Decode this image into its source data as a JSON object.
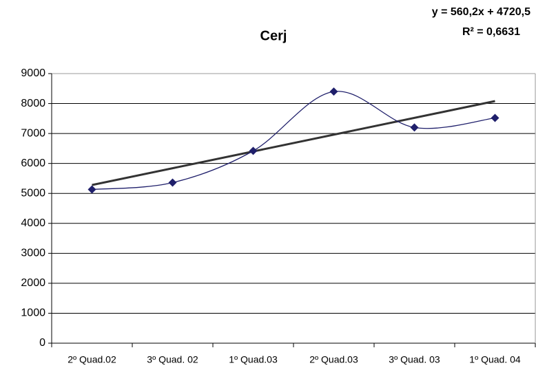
{
  "chart_data": {
    "type": "line",
    "title": "Cerj",
    "categories": [
      "2º Quad.02",
      "3º Quad. 02",
      "1º Quad.03",
      "2º Quad.03",
      "3º Quad. 03",
      "1º Quad. 04"
    ],
    "series": [
      {
        "name": "Cerj",
        "color": "#1f1f6b",
        "values": [
          5130,
          5360,
          6420,
          8400,
          7200,
          7520
        ]
      }
    ],
    "trendline": {
      "equation": "y = 560,2x + 4720,5",
      "r2": "R² = 0,6631",
      "slope": 560.2,
      "intercept": 4720.5,
      "color": "#333333"
    },
    "ylim": [
      0,
      9000
    ],
    "yticks": [
      0,
      1000,
      2000,
      3000,
      4000,
      5000,
      6000,
      7000,
      8000,
      9000
    ],
    "grid": true,
    "smooth": true
  }
}
